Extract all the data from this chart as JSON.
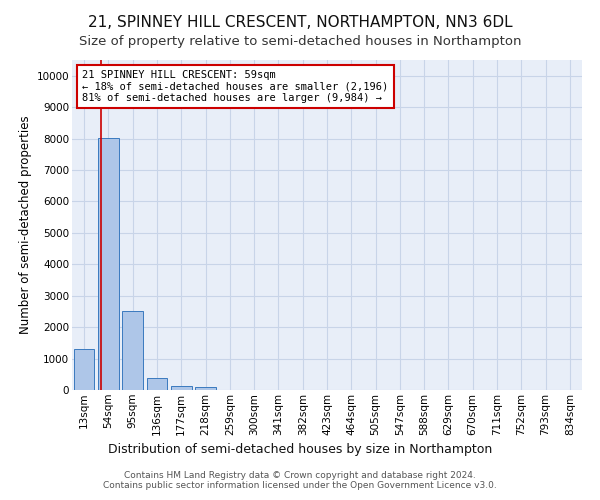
{
  "title": "21, SPINNEY HILL CRESCENT, NORTHAMPTON, NN3 6DL",
  "subtitle": "Size of property relative to semi-detached houses in Northampton",
  "xlabel_bottom": "Distribution of semi-detached houses by size in Northampton",
  "ylabel": "Number of semi-detached properties",
  "footer1": "Contains HM Land Registry data © Crown copyright and database right 2024.",
  "footer2": "Contains public sector information licensed under the Open Government Licence v3.0.",
  "bar_labels": [
    "13sqm",
    "54sqm",
    "95sqm",
    "136sqm",
    "177sqm",
    "218sqm",
    "259sqm",
    "300sqm",
    "341sqm",
    "382sqm",
    "423sqm",
    "464sqm",
    "505sqm",
    "547sqm",
    "588sqm",
    "629sqm",
    "670sqm",
    "711sqm",
    "752sqm",
    "793sqm",
    "834sqm"
  ],
  "bar_values": [
    1320,
    8030,
    2520,
    380,
    130,
    95,
    0,
    0,
    0,
    0,
    0,
    0,
    0,
    0,
    0,
    0,
    0,
    0,
    0,
    0,
    0
  ],
  "bar_color": "#aec6e8",
  "bar_edge_color": "#3a7abf",
  "subject_sqm": 59,
  "pct_smaller": 18,
  "count_smaller": "2,196",
  "pct_larger": 81,
  "count_larger": "9,984",
  "annotation_line1": "21 SPINNEY HILL CRESCENT: 59sqm",
  "annotation_line2": "← 18% of semi-detached houses are smaller (2,196)",
  "annotation_line3": "81% of semi-detached houses are larger (9,984) →",
  "vline_color": "#cc0000",
  "annotation_box_edge": "#cc0000",
  "ylim": [
    0,
    10500
  ],
  "yticks": [
    0,
    1000,
    2000,
    3000,
    4000,
    5000,
    6000,
    7000,
    8000,
    9000,
    10000
  ],
  "grid_color": "#c8d4e8",
  "bg_color": "#e8eef8",
  "title_fontsize": 11,
  "subtitle_fontsize": 9.5,
  "axis_fontsize": 8.5,
  "tick_fontsize": 7.5,
  "annotation_fontsize": 7.5,
  "footer_fontsize": 6.5
}
